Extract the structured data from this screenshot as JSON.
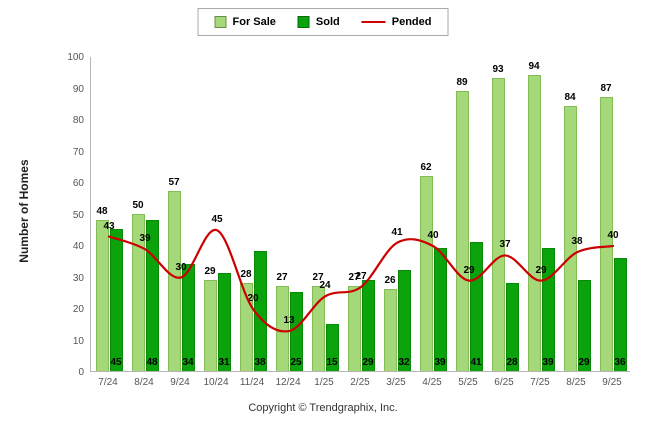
{
  "chart_data": {
    "type": "bar",
    "title": "",
    "xlabel": "",
    "ylabel": "Number of Homes",
    "ylim": [
      0,
      100
    ],
    "ytick_step": 10,
    "legend_position": "top",
    "grid": false,
    "categories": [
      "7/24",
      "8/24",
      "9/24",
      "10/24",
      "11/24",
      "12/24",
      "1/25",
      "2/25",
      "3/25",
      "4/25",
      "5/25",
      "6/25",
      "7/25",
      "8/25",
      "9/25"
    ],
    "series": [
      {
        "name": "For Sale",
        "type": "bar",
        "color": "#a5d878",
        "values": [
          48,
          50,
          57,
          29,
          28,
          27,
          27,
          27,
          26,
          62,
          89,
          93,
          94,
          84,
          87
        ]
      },
      {
        "name": "Sold",
        "type": "bar",
        "color": "#0ba30b",
        "values": [
          45,
          48,
          34,
          31,
          38,
          25,
          15,
          29,
          32,
          39,
          41,
          28,
          39,
          29,
          36
        ]
      },
      {
        "name": "Pended",
        "type": "line",
        "color": "#cc0000",
        "values": [
          43,
          39,
          30,
          45,
          20,
          13,
          24,
          27,
          41,
          40,
          29,
          37,
          29,
          38,
          40
        ]
      }
    ]
  },
  "footer": {
    "copyright": "Copyright © Trendgraphix, Inc."
  }
}
